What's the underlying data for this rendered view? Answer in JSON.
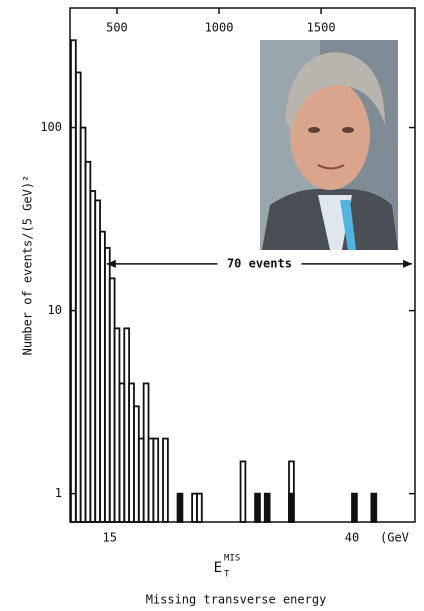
{
  "chart_data": {
    "type": "histogram",
    "ylabel": "Number of events/(5 GeV)²",
    "xlabel": "E",
    "xlabel_sub": "T",
    "xlabel_sup": "MIS",
    "xlabel_caption": "Missing transverse energy",
    "x_unit": "(GeV",
    "xlim": [
      10.9,
      46.5
    ],
    "xticks": [
      15,
      40
    ],
    "x2lim": [
      270,
      1960
    ],
    "x2ticks": [
      500,
      1000,
      1500
    ],
    "ylim": [
      0.7,
      450
    ],
    "yticks": [
      1,
      10,
      100
    ],
    "log_y": true,
    "bins": [
      11,
      11.5,
      12,
      12.5,
      13,
      13.5,
      14,
      14.5,
      15,
      15.5,
      16,
      16.5,
      17,
      17.5,
      18,
      18.5,
      19,
      19.5,
      20,
      20.5,
      21,
      21.5,
      22,
      22.5,
      23,
      23.5,
      24,
      24.5,
      25,
      25.5,
      26,
      26.5,
      27,
      27.5,
      28,
      28.5,
      29,
      29.5,
      30,
      30.5,
      31,
      31.5,
      32,
      32.5,
      33,
      33.5,
      34,
      34.5,
      35,
      35.5,
      36,
      36.5,
      37,
      37.5,
      38,
      38.5,
      39,
      39.5,
      40,
      40.5,
      41,
      41.5,
      42,
      42.5,
      43,
      43.5,
      44,
      44.5,
      45,
      45.5,
      46
    ],
    "series": [
      {
        "style": "outline",
        "color": "#111111",
        "values": [
          300,
          200,
          100,
          65,
          45,
          40,
          27,
          22,
          15,
          8,
          4,
          8,
          4,
          3,
          2,
          4,
          2,
          2,
          0,
          2,
          0,
          0,
          0,
          0,
          0,
          1,
          1,
          0,
          0,
          0,
          0,
          0,
          0,
          0,
          0,
          1.5,
          0,
          0,
          0,
          0,
          0,
          0,
          0,
          0,
          0,
          1.5,
          0,
          0,
          0,
          0,
          0,
          0,
          0,
          0,
          0,
          0,
          0,
          0,
          0,
          0,
          0,
          0,
          0,
          0,
          0,
          0,
          0,
          0,
          0,
          0
        ]
      },
      {
        "style": "filled",
        "color": "#111111",
        "values": [
          0,
          0,
          0,
          0,
          0,
          0,
          0,
          0,
          0,
          0,
          0,
          0,
          0,
          0,
          0,
          0,
          0,
          0,
          0,
          0,
          0,
          0,
          1,
          0,
          0,
          0,
          0,
          0,
          0,
          0,
          0,
          0,
          0,
          0,
          0,
          0,
          0,
          0,
          1,
          0,
          1,
          0,
          0,
          0,
          0,
          1,
          0,
          0,
          0,
          0,
          0,
          0,
          0,
          0,
          0,
          0,
          0,
          0,
          1,
          0,
          0,
          0,
          1,
          0,
          0,
          0,
          0,
          0,
          0,
          0
        ]
      }
    ],
    "annotation": {
      "text": "70 events",
      "x_range": [
        14.7,
        46.2
      ],
      "y": 18
    }
  }
}
